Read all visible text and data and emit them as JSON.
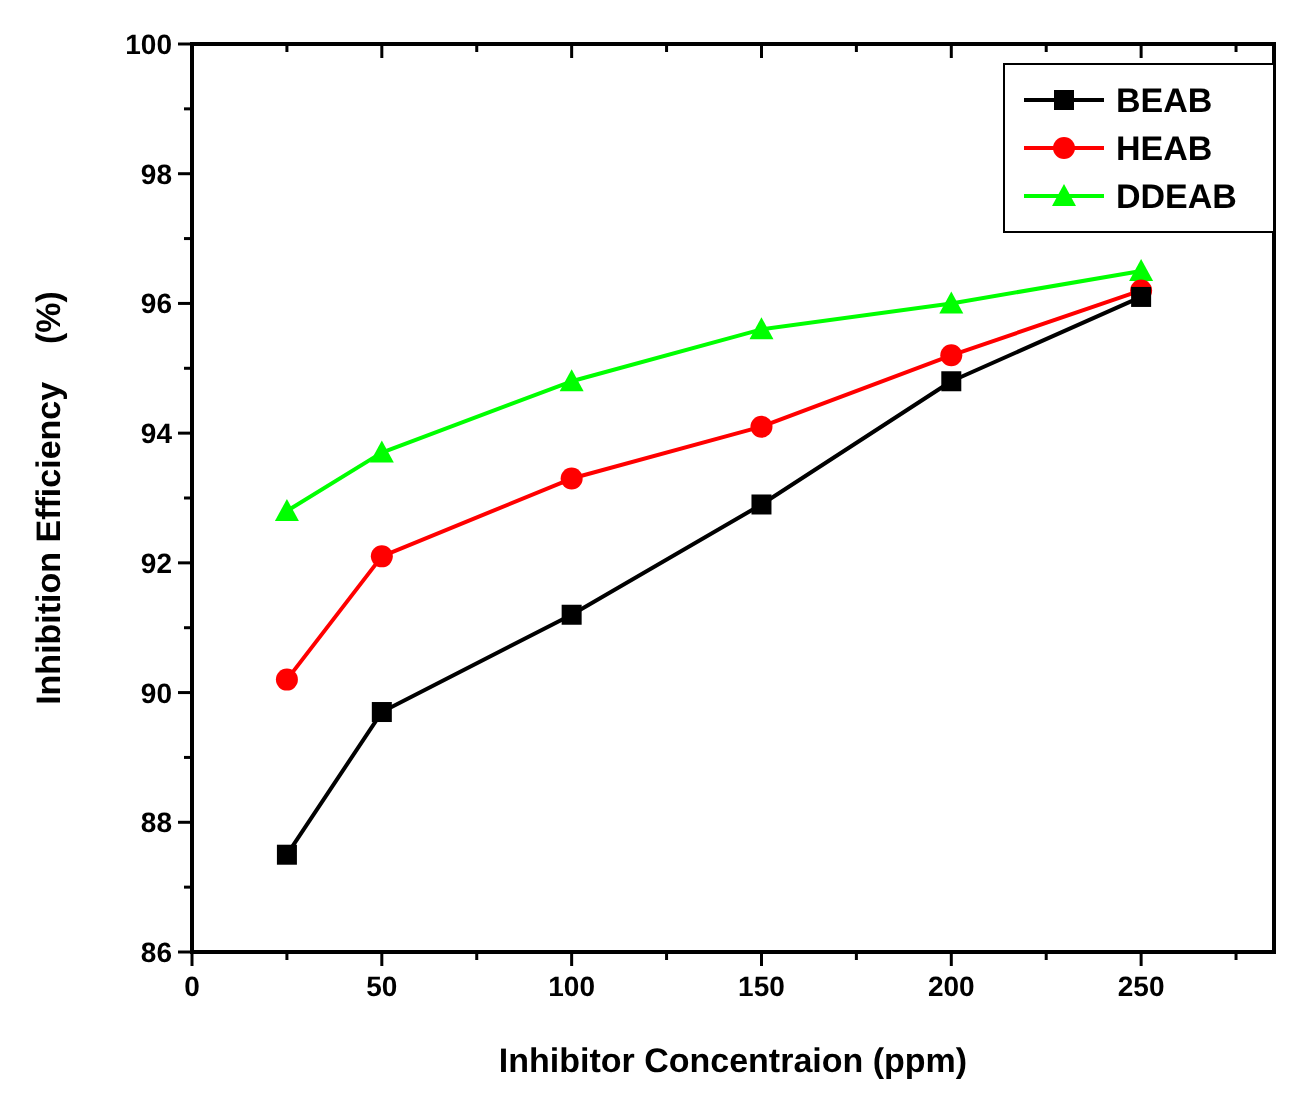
{
  "chart_data": {
    "type": "line",
    "xlabel": "Inhibitor Concentraion (ppm)",
    "ylabel": "Inhibition Efficiency    (%)",
    "x": [
      25,
      50,
      100,
      150,
      200,
      250
    ],
    "series": [
      {
        "name": "BEAB",
        "color": "#000000",
        "marker": "square",
        "values": [
          87.5,
          89.7,
          91.2,
          92.9,
          94.8,
          96.1
        ]
      },
      {
        "name": "HEAB",
        "color": "#ff0000",
        "marker": "circle",
        "values": [
          90.2,
          92.1,
          93.3,
          94.1,
          95.2,
          96.2
        ]
      },
      {
        "name": "DDEAB",
        "color": "#00ff00",
        "marker": "triangle",
        "values": [
          92.8,
          93.7,
          94.8,
          95.6,
          96.0,
          96.5
        ]
      }
    ],
    "xlim": [
      0,
      285
    ],
    "xticks": [
      0,
      {
        "value": 25,
        "label": null
      },
      50,
      {
        "value": 75,
        "label": null
      },
      100,
      {
        "value": 125,
        "label": null
      },
      150,
      {
        "value": 175,
        "label": null
      },
      200,
      {
        "value": 225,
        "label": null
      },
      250,
      {
        "value": 275,
        "label": null
      }
    ],
    "ylim": [
      86,
      100
    ],
    "yticks": [
      86,
      {
        "value": 87,
        "label": null
      },
      88,
      {
        "value": 89,
        "label": null
      },
      90,
      {
        "value": 91,
        "label": null
      },
      92,
      {
        "value": 93,
        "label": null
      },
      94,
      {
        "value": 95,
        "label": null
      },
      96,
      {
        "value": 97,
        "label": null
      },
      98,
      {
        "value": 99,
        "label": null
      },
      100
    ],
    "legend": "top right",
    "line_style": "solid"
  }
}
